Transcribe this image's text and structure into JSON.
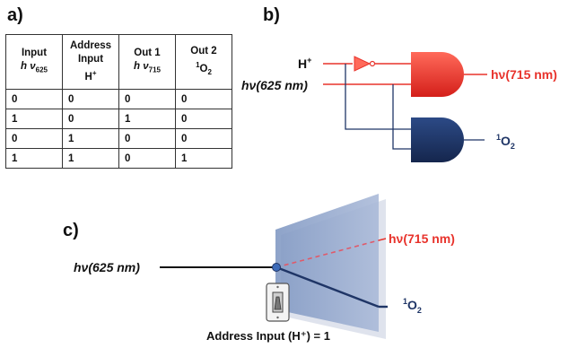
{
  "panels": {
    "a": "a)",
    "b": "b)",
    "c": "c)"
  },
  "table": {
    "headers": [
      {
        "line1": "Input",
        "line2_main": "h ν",
        "line2_sub": "625"
      },
      {
        "line1": "Address",
        "line2": "Input",
        "line3_main": "H",
        "line3_sup": "+"
      },
      {
        "line1": "Out 1",
        "line2_main": "h ν",
        "line2_sub": "715"
      },
      {
        "line1": "Out 2",
        "line2_sup": "1",
        "line2_main": "O",
        "line2_sub": "2"
      }
    ],
    "rows": [
      [
        "0",
        "0",
        "0",
        "0"
      ],
      [
        "1",
        "0",
        "1",
        "0"
      ],
      [
        "0",
        "1",
        "0",
        "0"
      ],
      [
        "1",
        "1",
        "0",
        "1"
      ]
    ]
  },
  "logic": {
    "h_plus": "H",
    "h_plus_sup": "+",
    "input_label": "hν(625 nm)",
    "out1_label": "hν(715 nm)",
    "out2_sup": "1",
    "out2_main": "O",
    "out2_sub": "2"
  },
  "switch_diagram": {
    "input_label": "hν(625 nm)",
    "out1_label": "hν(715 nm)",
    "out2_sup": "1",
    "out2_main": "O",
    "out2_sub": "2",
    "address_label": "Address Input (H⁺) = 1"
  },
  "colors": {
    "red": "#e8332c",
    "navy": "#1f3566",
    "panel": "#8ea3c8"
  }
}
